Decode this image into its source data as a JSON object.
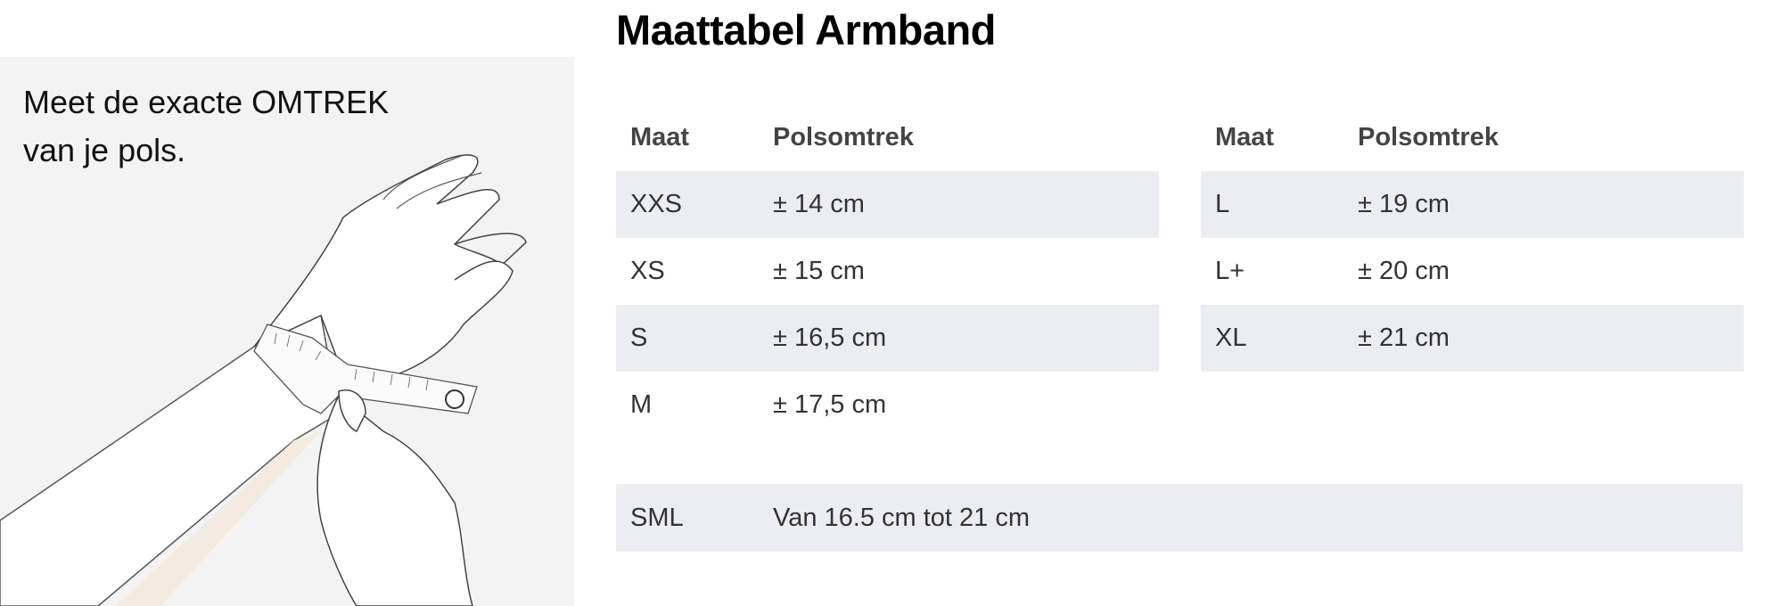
{
  "instruction": {
    "line1": "Meet de exacte OMTREK",
    "line2": "van je pols."
  },
  "title": "Maattabel Armband",
  "table_left": {
    "headers": {
      "size": "Maat",
      "circumference": "Polsomtrek"
    },
    "rows": [
      {
        "size": "XXS",
        "circumference": "± 14 cm"
      },
      {
        "size": "XS",
        "circumference": "± 15 cm"
      },
      {
        "size": "S",
        "circumference": "± 16,5 cm"
      },
      {
        "size": "M",
        "circumference": "± 17,5 cm"
      }
    ]
  },
  "table_right": {
    "headers": {
      "size": "Maat",
      "circumference": "Polsomtrek"
    },
    "rows": [
      {
        "size": "L",
        "circumference": "± 19 cm"
      },
      {
        "size": "L+",
        "circumference": "± 20 cm"
      },
      {
        "size": "XL",
        "circumference": "± 21 cm"
      }
    ]
  },
  "sml_row": {
    "size": "SML",
    "circumference": "Van 16.5 cm tot 21 cm"
  },
  "colors": {
    "row_shade": "#ecedf0",
    "panel_bg": "#f3f3f3"
  }
}
